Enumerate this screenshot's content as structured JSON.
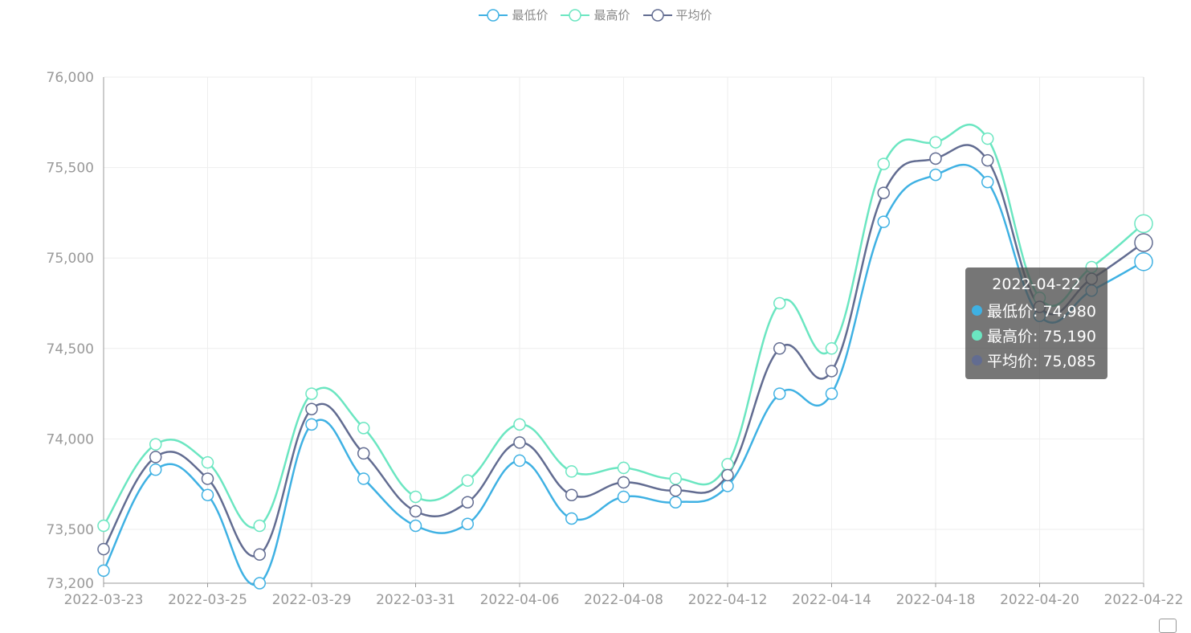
{
  "legend": {
    "items": [
      {
        "label": "最低价",
        "color": "#3fb1e3"
      },
      {
        "label": "最高价",
        "color": "#6be6c1"
      },
      {
        "label": "平均价",
        "color": "#626c91"
      }
    ]
  },
  "tooltip": {
    "title": "2022-04-22",
    "rows": [
      {
        "text": "最低价: 74,980",
        "color": "#3fb1e3"
      },
      {
        "text": "最高价: 75,190",
        "color": "#6be6c1"
      },
      {
        "text": "平均价: 75,085",
        "color": "#626c91"
      }
    ]
  },
  "chart_data": {
    "type": "line",
    "title": "",
    "xlabel": "",
    "ylabel": "",
    "ylim": [
      73200,
      76000
    ],
    "y_ticks": [
      73200,
      73500,
      74000,
      74500,
      75000,
      75500,
      76000
    ],
    "y_tick_labels": [
      "73,200",
      "73,500",
      "74,000",
      "74,500",
      "75,000",
      "75,500",
      "76,000"
    ],
    "x_tick_labels": [
      "2022-03-23",
      "2022-03-25",
      "2022-03-29",
      "2022-03-31",
      "2022-04-06",
      "2022-04-08",
      "2022-04-12",
      "2022-04-14",
      "2022-04-18",
      "2022-04-20",
      "2022-04-22"
    ],
    "categories": [
      "2022-03-23",
      "2022-03-24",
      "2022-03-25",
      "2022-03-28",
      "2022-03-29",
      "2022-03-30",
      "2022-03-31",
      "2022-04-01",
      "2022-04-06",
      "2022-04-07",
      "2022-04-08",
      "2022-04-11",
      "2022-04-12",
      "2022-04-13",
      "2022-04-14",
      "2022-04-15",
      "2022-04-18",
      "2022-04-19",
      "2022-04-20",
      "2022-04-21",
      "2022-04-22"
    ],
    "series": [
      {
        "name": "最低价",
        "color": "#3fb1e3",
        "values": [
          73270,
          73830,
          73690,
          73200,
          74080,
          73780,
          73520,
          73530,
          73880,
          73560,
          73680,
          73650,
          73740,
          74250,
          74250,
          75200,
          75460,
          75420,
          74680,
          74820,
          74980
        ]
      },
      {
        "name": "最高价",
        "color": "#6be6c1",
        "values": [
          73520,
          73970,
          73870,
          73520,
          74250,
          74060,
          73680,
          73770,
          74080,
          73820,
          73840,
          73780,
          73860,
          74750,
          74500,
          75520,
          75640,
          75660,
          74780,
          74950,
          75190
        ]
      },
      {
        "name": "平均价",
        "color": "#626c91",
        "values": [
          73390,
          73900,
          73780,
          73360,
          74165,
          73920,
          73600,
          73650,
          73980,
          73690,
          73760,
          73715,
          73800,
          74500,
          74375,
          75360,
          75550,
          75540,
          74730,
          74885,
          75085
        ]
      }
    ],
    "grid": true,
    "legend_position": "top-center",
    "highlighted_category": "2022-04-22"
  }
}
